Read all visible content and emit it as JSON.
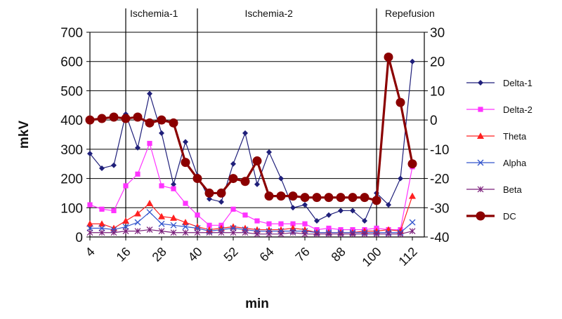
{
  "chart_data": {
    "type": "line",
    "title": "",
    "xlabel": "min",
    "ylabel": "mkV",
    "x": [
      4,
      8,
      12,
      16,
      20,
      24,
      28,
      32,
      36,
      40,
      44,
      48,
      52,
      56,
      60,
      64,
      68,
      72,
      76,
      80,
      84,
      88,
      92,
      96,
      100,
      104,
      108,
      112,
      116
    ],
    "x_ticks": [
      "4",
      "16",
      "28",
      "40",
      "52",
      "64",
      "76",
      "88",
      "100",
      "112"
    ],
    "y_left_range": [
      0,
      700
    ],
    "y_left_ticks": [
      "0",
      "100",
      "200",
      "300",
      "400",
      "500",
      "600",
      "700"
    ],
    "y_right_range": [
      -40,
      30
    ],
    "y_right_ticks": [
      "-40",
      "-30",
      "-20",
      "-10",
      "0",
      "10",
      "20",
      "30"
    ],
    "phases": [
      {
        "label": "Ischemia-1",
        "start": 16,
        "end": 40
      },
      {
        "label": "Ischemia-2",
        "start": 40,
        "end": 100
      },
      {
        "label": "Repefusion",
        "start": 100,
        "end": 116
      }
    ],
    "series": [
      {
        "name": "Delta-1",
        "axis": "left",
        "color": "#1f1f7a",
        "marker": "diamond",
        "values": [
          285,
          235,
          245,
          420,
          305,
          490,
          355,
          180,
          325,
          210,
          130,
          120,
          250,
          355,
          180,
          290,
          200,
          100,
          110,
          55,
          75,
          90,
          90,
          55,
          150,
          110,
          200,
          600,
          null
        ]
      },
      {
        "name": "Delta-2",
        "axis": "left",
        "color": "#ff33ff",
        "marker": "square",
        "values": [
          110,
          95,
          90,
          175,
          215,
          320,
          175,
          165,
          115,
          75,
          40,
          40,
          95,
          75,
          55,
          45,
          45,
          45,
          45,
          25,
          30,
          25,
          25,
          25,
          30,
          25,
          25,
          240,
          null
        ]
      },
      {
        "name": "Theta",
        "axis": "left",
        "color": "#ff2020",
        "marker": "triangle",
        "values": [
          45,
          45,
          30,
          55,
          80,
          115,
          70,
          65,
          50,
          35,
          25,
          30,
          35,
          30,
          25,
          25,
          25,
          30,
          25,
          15,
          15,
          15,
          15,
          20,
          20,
          25,
          20,
          140,
          null
        ]
      },
      {
        "name": "Alpha",
        "axis": "left",
        "color": "#3355cc",
        "marker": "x",
        "values": [
          30,
          30,
          25,
          35,
          50,
          85,
          45,
          40,
          35,
          30,
          20,
          25,
          30,
          25,
          20,
          20,
          20,
          20,
          20,
          15,
          15,
          15,
          15,
          15,
          15,
          15,
          15,
          50,
          null
        ]
      },
      {
        "name": "Beta",
        "axis": "left",
        "color": "#7a1f7a",
        "marker": "star",
        "values": [
          15,
          15,
          15,
          20,
          20,
          25,
          20,
          15,
          15,
          15,
          15,
          15,
          15,
          15,
          10,
          10,
          10,
          15,
          10,
          10,
          10,
          10,
          10,
          10,
          10,
          10,
          10,
          20,
          null
        ]
      },
      {
        "name": "DC",
        "axis": "right",
        "color": "#8b0000",
        "marker": "circle",
        "values": [
          0,
          0.5,
          1,
          0.5,
          1,
          -1,
          0,
          -1,
          -14.5,
          -20,
          -25,
          -25,
          -20,
          -21,
          -14,
          -26,
          -26,
          -26,
          -26.5,
          -26.5,
          -26.5,
          -26.5,
          -26.5,
          -26.5,
          -27.5,
          21.5,
          6,
          -15,
          null
        ]
      }
    ],
    "legend_position": "right"
  }
}
